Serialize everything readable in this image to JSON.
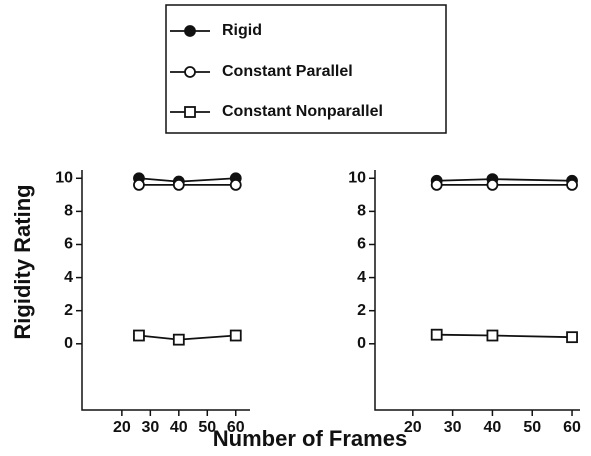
{
  "chart_data": [
    {
      "type": "line",
      "ylabel": "Rigidity Rating",
      "xlabel": "Number of Frames",
      "x": [
        26,
        40,
        60
      ],
      "series": [
        {
          "name": "Rigid",
          "color": "#111111",
          "marker": "filled-circle",
          "values": [
            10,
            9.8,
            10
          ]
        },
        {
          "name": "Constant Parallel",
          "color": "#111111",
          "marker": "open-circle",
          "values": [
            9.6,
            9.6,
            9.6
          ]
        },
        {
          "name": "Constant Nonparallel",
          "color": "#111111",
          "marker": "open-square",
          "values": [
            0.5,
            0.25,
            0.5
          ]
        }
      ],
      "xlim": [
        6,
        65
      ],
      "xticks": [
        20,
        30,
        40,
        50,
        60
      ],
      "ylim": [
        -4,
        10.5
      ],
      "yticks": [
        0,
        2,
        4,
        6,
        8,
        10
      ]
    },
    {
      "type": "line",
      "x": [
        26,
        40,
        60
      ],
      "series": [
        {
          "color": "#111111",
          "marker": "filled-circle",
          "values": [
            9.85,
            9.95,
            9.85
          ]
        },
        {
          "color": "#111111",
          "marker": "open-circle",
          "values": [
            9.6,
            9.6,
            9.6
          ]
        },
        {
          "color": "#111111",
          "marker": "open-square",
          "values": [
            0.55,
            0.5,
            0.4
          ]
        }
      ],
      "xlim": [
        10.5,
        62
      ],
      "xticks": [
        20,
        30,
        40,
        50,
        60
      ],
      "ylim": [
        -4,
        10.5
      ],
      "yticks": [
        0,
        2,
        4,
        6,
        8,
        10
      ]
    }
  ]
}
